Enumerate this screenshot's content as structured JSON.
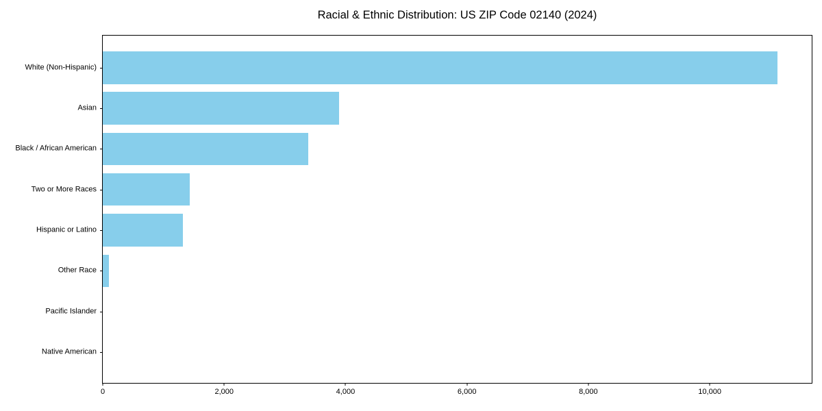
{
  "title": "Racial & Ethnic Distribution: US ZIP Code 02140 (2024)",
  "colors": {
    "bar": "#87CEEB",
    "axis": "#000000",
    "background": "#FFFFFF",
    "text": "#000000"
  },
  "chart_data": {
    "type": "bar",
    "orientation": "horizontal",
    "title": "Racial & Ethnic Distribution: US ZIP Code 02140 (2024)",
    "categories": [
      "White (Non-Hispanic)",
      "Asian",
      "Black / African American",
      "Two or More Races",
      "Hispanic or Latino",
      "Other Race",
      "Pacific Islander",
      "Native American"
    ],
    "values": [
      11120,
      3890,
      3380,
      1430,
      1320,
      100,
      0,
      0
    ],
    "xlabel": "",
    "ylabel": "",
    "xlim": [
      0,
      11680
    ],
    "xticks": [
      0,
      2000,
      4000,
      6000,
      8000,
      10000
    ],
    "xtick_labels": [
      "0",
      "2,000",
      "4,000",
      "6,000",
      "8,000",
      "10,000"
    ],
    "grid": false,
    "legend": null,
    "bar_color": "#87CEEB",
    "sort_order": "descending"
  }
}
